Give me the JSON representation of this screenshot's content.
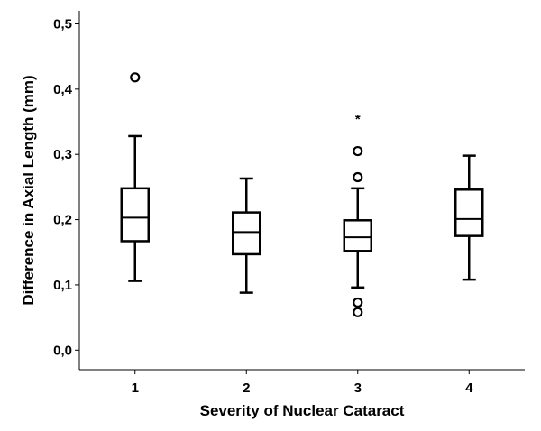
{
  "chart_data": {
    "type": "boxplot",
    "xlabel": "Severity of Nuclear Cataract",
    "ylabel": "Difference in Axial Length (mm)",
    "categories": [
      "1",
      "2",
      "3",
      "4"
    ],
    "ylim": [
      -0.03,
      0.52
    ],
    "yticks": [
      0.0,
      0.1,
      0.2,
      0.3,
      0.4,
      0.5
    ],
    "ytick_labels": [
      "0,0",
      "0,1",
      "0,2",
      "0,3",
      "0,4",
      "0,5"
    ],
    "grid": false,
    "boxes": [
      {
        "category": "1",
        "whisker_low": 0.106,
        "q1": 0.167,
        "median": 0.203,
        "q3": 0.248,
        "whisker_high": 0.328,
        "outliers": [
          0.418
        ],
        "extremes": []
      },
      {
        "category": "2",
        "whisker_low": 0.088,
        "q1": 0.147,
        "median": 0.181,
        "q3": 0.211,
        "whisker_high": 0.263,
        "outliers": [],
        "extremes": []
      },
      {
        "category": "3",
        "whisker_low": 0.096,
        "q1": 0.152,
        "median": 0.173,
        "q3": 0.199,
        "whisker_high": 0.248,
        "outliers": [
          0.305,
          0.265,
          0.073,
          0.058
        ],
        "extremes": [
          0.358
        ]
      },
      {
        "category": "4",
        "whisker_low": 0.108,
        "q1": 0.175,
        "median": 0.201,
        "q3": 0.246,
        "whisker_high": 0.298,
        "outliers": [],
        "extremes": []
      }
    ],
    "extreme_marker": "*"
  }
}
